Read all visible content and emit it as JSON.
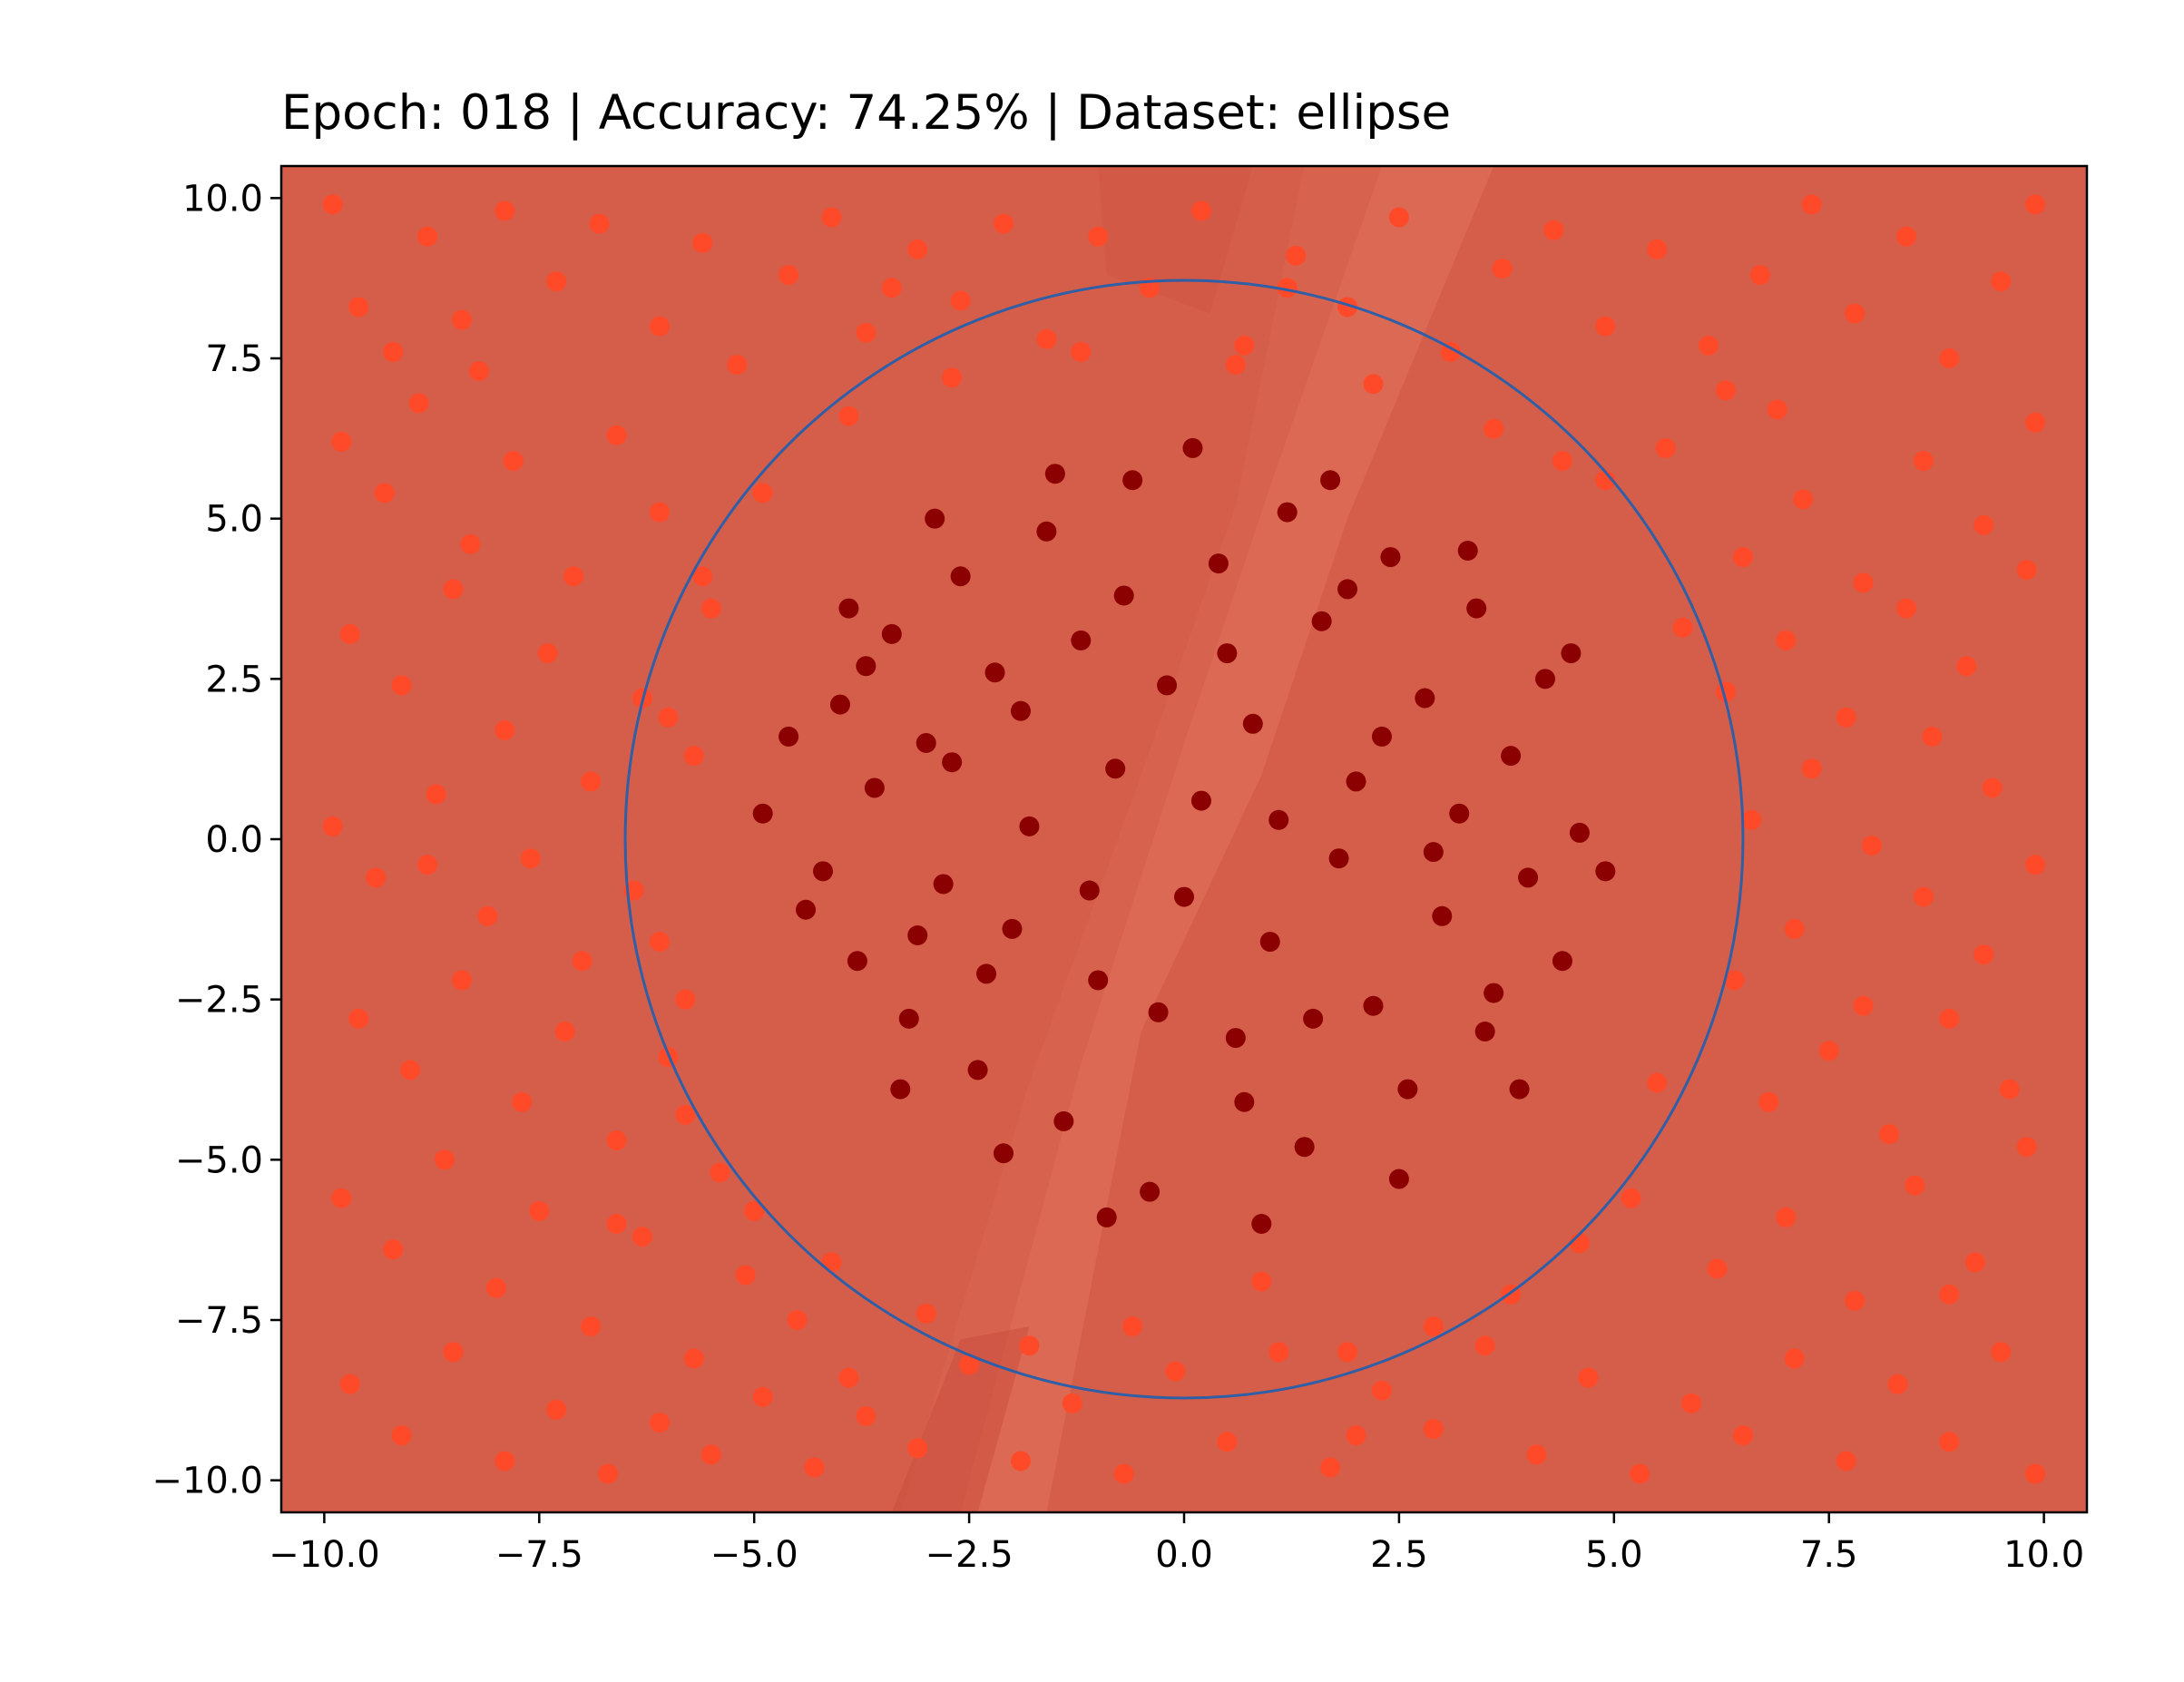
{
  "chart_data": {
    "type": "scatter",
    "title": "Epoch: 018 | Accuracy: 74.25% | Dataset: ellipse",
    "xlabel": "",
    "ylabel": "",
    "xlim": [
      -10.5,
      10.5
    ],
    "ylim": [
      -10.5,
      10.5
    ],
    "x_ticks": [
      -10.0,
      -7.5,
      -5.0,
      -2.5,
      0.0,
      2.5,
      5.0,
      7.5,
      10.0
    ],
    "y_ticks": [
      -10.0,
      -7.5,
      -5.0,
      -2.5,
      0.0,
      2.5,
      5.0,
      7.5,
      10.0
    ],
    "x_tick_labels": [
      "−10.0",
      "−7.5",
      "−5.0",
      "−2.5",
      "0.0",
      "2.5",
      "5.0",
      "7.5",
      "10.0"
    ],
    "y_tick_labels": [
      "−10.0",
      "−7.5",
      "−5.0",
      "−2.5",
      "0.0",
      "2.5",
      "5.0",
      "7.5",
      "10.0"
    ],
    "grid": false,
    "legend": "none",
    "decision_background_color": "#d55e4a",
    "decision_region_light_color": "#e0735c",
    "decision_region_dark_color": "#cc5040",
    "boundary_circle": {
      "center": [
        0,
        0
      ],
      "radius": 6.5,
      "color": "#2f5fa6"
    },
    "series": [
      {
        "class": "outside",
        "color": "#ff4a2a",
        "points": [
          [
            -9.9,
            9.9
          ],
          [
            -9.6,
            8.3
          ],
          [
            -9.2,
            7.6
          ],
          [
            -8.8,
            9.4
          ],
          [
            -8.4,
            8.1
          ],
          [
            -7.9,
            9.8
          ],
          [
            -7.3,
            8.7
          ],
          [
            -6.8,
            9.6
          ],
          [
            -6.1,
            8.0
          ],
          [
            -5.6,
            9.3
          ],
          [
            -5.2,
            7.4
          ],
          [
            -4.6,
            8.8
          ],
          [
            -4.1,
            9.7
          ],
          [
            -3.7,
            7.9
          ],
          [
            -3.1,
            9.2
          ],
          [
            -2.6,
            8.4
          ],
          [
            -2.1,
            9.6
          ],
          [
            -1.6,
            7.8
          ],
          [
            -1.0,
            9.4
          ],
          [
            -0.4,
            8.6
          ],
          [
            0.2,
            9.8
          ],
          [
            0.7,
            7.7
          ],
          [
            1.3,
            9.1
          ],
          [
            1.9,
            8.3
          ],
          [
            2.5,
            9.7
          ],
          [
            3.1,
            7.6
          ],
          [
            3.7,
            8.9
          ],
          [
            4.3,
            9.5
          ],
          [
            4.9,
            8.0
          ],
          [
            5.5,
            9.2
          ],
          [
            6.1,
            7.7
          ],
          [
            6.7,
            8.8
          ],
          [
            7.3,
            9.9
          ],
          [
            7.8,
            8.2
          ],
          [
            8.4,
            9.4
          ],
          [
            8.9,
            7.5
          ],
          [
            9.5,
            8.7
          ],
          [
            9.9,
            9.9
          ],
          [
            -9.8,
            6.2
          ],
          [
            -9.3,
            5.4
          ],
          [
            -8.9,
            6.8
          ],
          [
            -8.3,
            4.6
          ],
          [
            -7.8,
            5.9
          ],
          [
            -7.1,
            4.1
          ],
          [
            -6.6,
            6.3
          ],
          [
            -6.1,
            5.1
          ],
          [
            -5.5,
            3.6
          ],
          [
            -9.7,
            3.2
          ],
          [
            -9.1,
            2.4
          ],
          [
            -8.5,
            3.9
          ],
          [
            -7.9,
            1.7
          ],
          [
            -7.4,
            2.9
          ],
          [
            -6.9,
            0.9
          ],
          [
            -6.3,
            2.2
          ],
          [
            -5.7,
            1.3
          ],
          [
            -9.9,
            0.2
          ],
          [
            -9.4,
            -0.6
          ],
          [
            -8.7,
            0.7
          ],
          [
            -8.1,
            -1.2
          ],
          [
            -7.6,
            -0.3
          ],
          [
            -7.0,
            -1.9
          ],
          [
            -6.4,
            -0.8
          ],
          [
            -5.8,
            -2.5
          ],
          [
            -9.6,
            -2.8
          ],
          [
            -9.0,
            -3.6
          ],
          [
            -8.4,
            -2.2
          ],
          [
            -7.7,
            -4.1
          ],
          [
            -7.2,
            -3.0
          ],
          [
            -6.6,
            -4.7
          ],
          [
            -6.0,
            -3.4
          ],
          [
            -5.4,
            -5.2
          ],
          [
            -9.8,
            -5.6
          ],
          [
            -9.2,
            -6.4
          ],
          [
            -8.6,
            -5.0
          ],
          [
            -8.0,
            -7.0
          ],
          [
            -7.5,
            -5.8
          ],
          [
            -6.9,
            -7.6
          ],
          [
            -6.3,
            -6.2
          ],
          [
            -5.7,
            -8.1
          ],
          [
            -5.1,
            -6.8
          ],
          [
            -4.5,
            -7.5
          ],
          [
            -3.9,
            -8.4
          ],
          [
            -9.7,
            -8.5
          ],
          [
            -9.1,
            -9.3
          ],
          [
            -8.5,
            -8.0
          ],
          [
            -7.9,
            -9.7
          ],
          [
            -7.3,
            -8.9
          ],
          [
            -6.7,
            -9.9
          ],
          [
            -6.1,
            -9.1
          ],
          [
            -5.5,
            -9.6
          ],
          [
            -4.9,
            -8.7
          ],
          [
            -4.3,
            -9.8
          ],
          [
            -3.7,
            -9.0
          ],
          [
            -3.1,
            -9.5
          ],
          [
            -2.5,
            -8.2
          ],
          [
            -1.9,
            -9.7
          ],
          [
            -1.3,
            -8.8
          ],
          [
            -0.7,
            -9.9
          ],
          [
            -0.1,
            -8.3
          ],
          [
            0.5,
            -9.4
          ],
          [
            1.1,
            -8.0
          ],
          [
            1.7,
            -9.8
          ],
          [
            2.3,
            -8.6
          ],
          [
            2.9,
            -9.2
          ],
          [
            3.5,
            -7.9
          ],
          [
            4.1,
            -9.6
          ],
          [
            4.7,
            -8.4
          ],
          [
            5.3,
            -9.9
          ],
          [
            5.9,
            -8.8
          ],
          [
            6.5,
            -9.3
          ],
          [
            7.1,
            -8.1
          ],
          [
            7.7,
            -9.7
          ],
          [
            8.3,
            -8.5
          ],
          [
            8.9,
            -9.4
          ],
          [
            9.5,
            -8.0
          ],
          [
            9.9,
            -9.9
          ],
          [
            6.2,
            -6.7
          ],
          [
            7.0,
            -5.9
          ],
          [
            7.8,
            -7.2
          ],
          [
            8.5,
            -5.4
          ],
          [
            9.2,
            -6.6
          ],
          [
            9.8,
            -4.8
          ],
          [
            6.8,
            -4.1
          ],
          [
            7.5,
            -3.3
          ],
          [
            8.2,
            -4.6
          ],
          [
            8.9,
            -2.8
          ],
          [
            9.6,
            -3.9
          ],
          [
            6.4,
            -2.2
          ],
          [
            7.1,
            -1.4
          ],
          [
            7.9,
            -2.6
          ],
          [
            8.6,
            -0.9
          ],
          [
            9.3,
            -1.8
          ],
          [
            9.9,
            -0.4
          ],
          [
            6.6,
            0.3
          ],
          [
            7.3,
            1.1
          ],
          [
            8.0,
            -0.1
          ],
          [
            8.7,
            1.6
          ],
          [
            9.4,
            0.8
          ],
          [
            6.3,
            2.3
          ],
          [
            7.0,
            3.1
          ],
          [
            7.7,
            1.9
          ],
          [
            8.4,
            3.6
          ],
          [
            9.1,
            2.7
          ],
          [
            9.8,
            4.2
          ],
          [
            6.5,
            4.4
          ],
          [
            7.2,
            5.3
          ],
          [
            7.9,
            4.0
          ],
          [
            8.6,
            5.9
          ],
          [
            9.3,
            4.9
          ],
          [
            9.9,
            6.5
          ],
          [
            5.6,
            6.1
          ],
          [
            6.3,
            7.0
          ],
          [
            4.9,
            5.6
          ],
          [
            5.8,
            3.3
          ],
          [
            5.5,
            -3.8
          ],
          [
            5.2,
            -5.6
          ],
          [
            4.6,
            -6.3
          ],
          [
            3.8,
            -7.1
          ],
          [
            2.9,
            -7.6
          ],
          [
            1.9,
            -8.0
          ],
          [
            -1.8,
            -7.9
          ],
          [
            -3.0,
            -7.4
          ],
          [
            -4.1,
            -6.6
          ],
          [
            -5.0,
            -5.8
          ],
          [
            -5.8,
            -4.3
          ],
          [
            -6.1,
            -1.6
          ],
          [
            -6.0,
            1.9
          ],
          [
            -5.6,
            4.1
          ],
          [
            -4.9,
            5.4
          ],
          [
            -3.9,
            6.6
          ],
          [
            -2.7,
            7.2
          ],
          [
            -1.2,
            7.6
          ],
          [
            0.6,
            7.4
          ],
          [
            2.2,
            7.1
          ],
          [
            3.6,
            6.4
          ],
          [
            4.4,
            5.9
          ],
          [
            -3.4,
            8.6
          ],
          [
            1.2,
            8.6
          ],
          [
            -8.8,
            -0.4
          ],
          [
            8.9,
            -7.1
          ],
          [
            -8.2,
            7.3
          ],
          [
            2.0,
            -9.3
          ],
          [
            -0.6,
            -7.6
          ],
          [
            0.9,
            -6.9
          ],
          [
            -6.6,
            -6.0
          ],
          [
            6.9,
            6.7
          ]
        ]
      },
      {
        "class": "inside",
        "color": "#8b0000",
        "points": [
          [
            -4.6,
            1.6
          ],
          [
            -4.2,
            -0.5
          ],
          [
            -4.0,
            2.1
          ],
          [
            -3.8,
            -1.9
          ],
          [
            -3.6,
            0.8
          ],
          [
            -3.4,
            3.2
          ],
          [
            -3.2,
            -2.8
          ],
          [
            -3.0,
            1.5
          ],
          [
            -2.8,
            -0.7
          ],
          [
            -2.6,
            4.1
          ],
          [
            -2.4,
            -3.6
          ],
          [
            -2.2,
            2.6
          ],
          [
            -2.0,
            -1.4
          ],
          [
            -1.8,
            0.2
          ],
          [
            -1.6,
            4.8
          ],
          [
            -1.4,
            -4.4
          ],
          [
            -1.2,
            3.1
          ],
          [
            -1.0,
            -2.2
          ],
          [
            -0.8,
            1.1
          ],
          [
            -0.6,
            5.6
          ],
          [
            -0.4,
            -5.5
          ],
          [
            -0.2,
            2.4
          ],
          [
            0.0,
            -0.9
          ],
          [
            0.2,
            0.6
          ],
          [
            0.4,
            4.3
          ],
          [
            0.6,
            -3.1
          ],
          [
            0.8,
            1.8
          ],
          [
            1.0,
            -1.6
          ],
          [
            1.2,
            5.1
          ],
          [
            1.4,
            -4.8
          ],
          [
            1.6,
            3.4
          ],
          [
            1.8,
            -0.3
          ],
          [
            2.0,
            0.9
          ],
          [
            2.2,
            -2.6
          ],
          [
            2.4,
            4.4
          ],
          [
            2.6,
            -3.9
          ],
          [
            2.8,
            2.2
          ],
          [
            3.0,
            -1.2
          ],
          [
            3.2,
            0.4
          ],
          [
            3.4,
            3.6
          ],
          [
            3.6,
            -2.4
          ],
          [
            3.8,
            1.3
          ],
          [
            4.0,
            -0.6
          ],
          [
            4.2,
            2.5
          ],
          [
            4.4,
            -1.9
          ],
          [
            4.6,
            0.1
          ],
          [
            -4.4,
            -1.1
          ],
          [
            -3.9,
            3.6
          ],
          [
            -3.3,
            -3.9
          ],
          [
            -2.9,
            5.0
          ],
          [
            -2.1,
            -4.9
          ],
          [
            -1.5,
            5.7
          ],
          [
            -0.9,
            -5.9
          ],
          [
            0.1,
            6.1
          ],
          [
            0.9,
            -6.0
          ],
          [
            1.7,
            5.6
          ],
          [
            2.5,
            -5.3
          ],
          [
            3.3,
            4.5
          ],
          [
            3.9,
            -3.9
          ],
          [
            4.5,
            2.9
          ],
          [
            -4.9,
            0.4
          ],
          [
            4.9,
            -0.5
          ],
          [
            -2.7,
            1.2
          ],
          [
            -1.1,
            -0.8
          ],
          [
            0.5,
            2.9
          ],
          [
            1.5,
            -2.8
          ],
          [
            2.9,
            -0.2
          ],
          [
            -0.3,
            -2.7
          ],
          [
            -1.9,
            2.0
          ],
          [
            1.1,
            0.3
          ],
          [
            -3.1,
            -1.5
          ],
          [
            2.3,
            1.6
          ],
          [
            0.7,
            -4.1
          ],
          [
            -0.7,
            3.8
          ],
          [
            3.5,
            -3.0
          ],
          [
            -3.7,
            2.7
          ],
          [
            -2.3,
            -2.1
          ],
          [
            1.9,
            3.9
          ]
        ]
      }
    ]
  }
}
